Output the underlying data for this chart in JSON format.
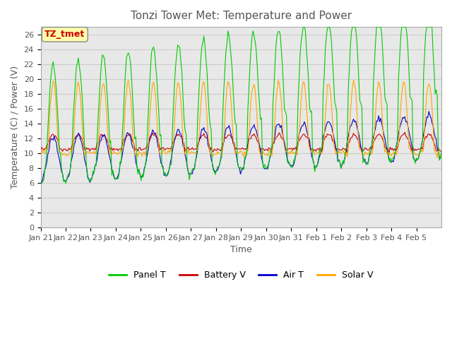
{
  "title": "Tonzi Tower Met: Temperature and Power",
  "xlabel": "Time",
  "ylabel": "Temperature (C) / Power (V)",
  "ylim": [
    0,
    27
  ],
  "yticks": [
    0,
    2,
    4,
    6,
    8,
    10,
    12,
    14,
    16,
    18,
    20,
    22,
    24,
    26
  ],
  "tz_label": "TZ_tmet",
  "legend": [
    "Panel T",
    "Battery V",
    "Air T",
    "Solar V"
  ],
  "colors": {
    "Panel T": "#00CC00",
    "Battery V": "#CC0000",
    "Air T": "#0000CC",
    "Solar V": "#FFA500"
  },
  "x_tick_labels": [
    "Jan 21",
    "Jan 22",
    "Jan 23",
    "Jan 24",
    "Jan 25",
    "Jan 26",
    "Jan 27",
    "Jan 28",
    "Jan 29",
    "Jan 30",
    "Jan 31",
    "Feb 1",
    "Feb 2",
    "Feb 3",
    "Feb 4",
    "Feb 5"
  ],
  "background_color": "#E8E8E8",
  "plot_bg": "#FFFFFF",
  "grid_color": "#CCCCCC"
}
